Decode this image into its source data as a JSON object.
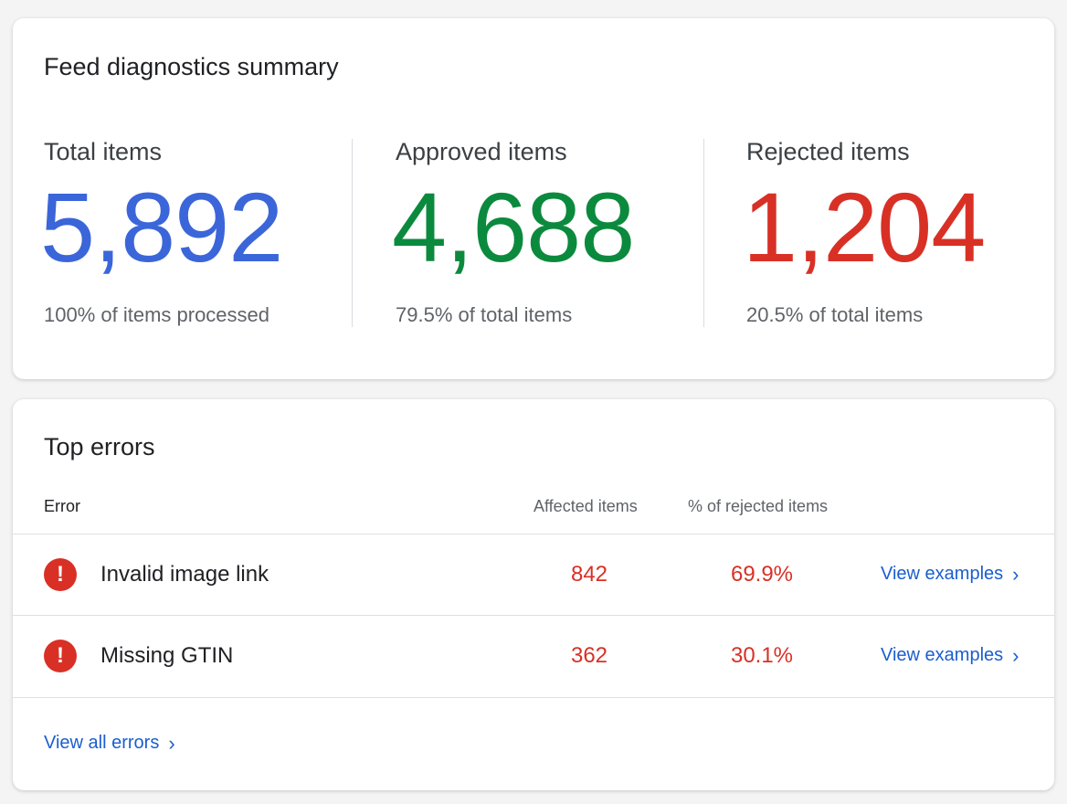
{
  "summary": {
    "title": "Feed diagnostics summary",
    "stats": [
      {
        "label": "Total items",
        "value": "5,892",
        "sub": "100% of items processed",
        "color": "#3b66d9"
      },
      {
        "label": "Approved items",
        "value": "4,688",
        "sub": "79.5% of total items",
        "color": "#0b8a3e"
      },
      {
        "label": "Rejected items",
        "value": "1,204",
        "sub": "20.5% of total items",
        "color": "#d93025"
      }
    ]
  },
  "errors": {
    "title": "Top errors",
    "columns": {
      "error": "Error",
      "affected": "Affected items",
      "pct": "% of rejected items"
    },
    "rows": [
      {
        "icon": "error-icon",
        "name": "Invalid image link",
        "affected": "842",
        "pct": "69.9%",
        "link": "View examples"
      },
      {
        "icon": "error-icon",
        "name": "Missing GTIN",
        "affected": "362",
        "pct": "30.1%",
        "link": "View examples"
      }
    ],
    "view_all": "View all errors"
  },
  "colors": {
    "link": "#1a5ecf",
    "error": "#d93025"
  }
}
